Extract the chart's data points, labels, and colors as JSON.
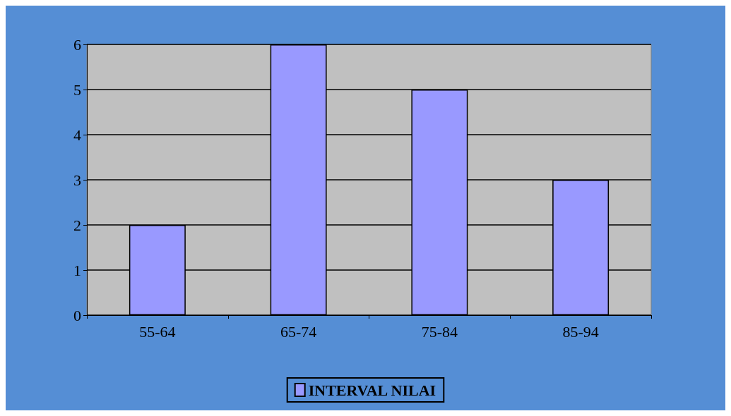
{
  "chart_data": {
    "type": "bar",
    "categories": [
      "55-64",
      "65-74",
      "75-84",
      "85-94"
    ],
    "series": [
      {
        "name": "INTERVAL NILAI",
        "color": "#9999ff",
        "values": [
          2,
          6,
          5,
          3
        ]
      }
    ],
    "ylim": [
      0,
      6
    ],
    "yticks": [
      0,
      1,
      2,
      3,
      4,
      5,
      6
    ],
    "grid": "y",
    "legend": "bottom"
  }
}
